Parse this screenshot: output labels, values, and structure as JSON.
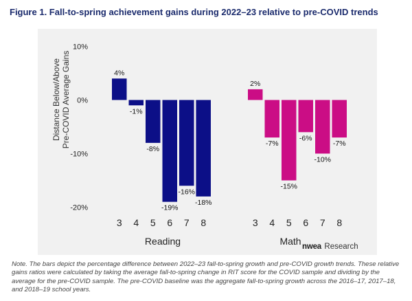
{
  "title": "Figure 1. Fall-to-spring achievement gains during 2022–23 relative to pre-COVID trends",
  "ylabel_lines": [
    "Distance Below/Above",
    "Pre-COVID Average Gains"
  ],
  "note": "Note. The bars depict the percentage difference between 2022–23 fall-to-spring growth and pre-COVID growth trends. These relative gains ratios were calculated by taking the average fall-to-spring change in RIT score for the COVID sample and dividing by the average for the pre-COVID sample. The pre-COVID baseline was the aggregate fall-to-spring growth across the 2016–17, 2017–18, and 2018–19 school years.",
  "logo": {
    "brand": "nwea",
    "sub": "Research"
  },
  "chart_data": {
    "type": "bar",
    "title": "Figure 1. Fall-to-spring achievement gains during 2022–23 relative to pre-COVID trends",
    "ylabel": "Distance Below/Above Pre-COVID Average Gains",
    "ylim": [
      -21,
      11
    ],
    "yticks": [
      10,
      0,
      -10,
      -20
    ],
    "ytick_labels": [
      "10%",
      "0%",
      "-10%",
      "-20%"
    ],
    "grid": false,
    "legend": "none",
    "groups": [
      {
        "name": "Reading",
        "color": "#0c0f87",
        "categories": [
          "3",
          "4",
          "5",
          "6",
          "7",
          "8"
        ],
        "values": [
          4,
          -1,
          -8,
          -19,
          -16,
          -18
        ],
        "labels": [
          "4%",
          "-1%",
          "-8%",
          "-19%",
          "-16%",
          "-18%"
        ]
      },
      {
        "name": "Math",
        "color": "#cb0d85",
        "categories": [
          "3",
          "4",
          "5",
          "6",
          "7",
          "8"
        ],
        "values": [
          2,
          -7,
          -15,
          -6,
          -10,
          -7
        ],
        "labels": [
          "2%",
          "-7%",
          "-15%",
          "-6%",
          "-10%",
          "-7%"
        ]
      }
    ]
  }
}
